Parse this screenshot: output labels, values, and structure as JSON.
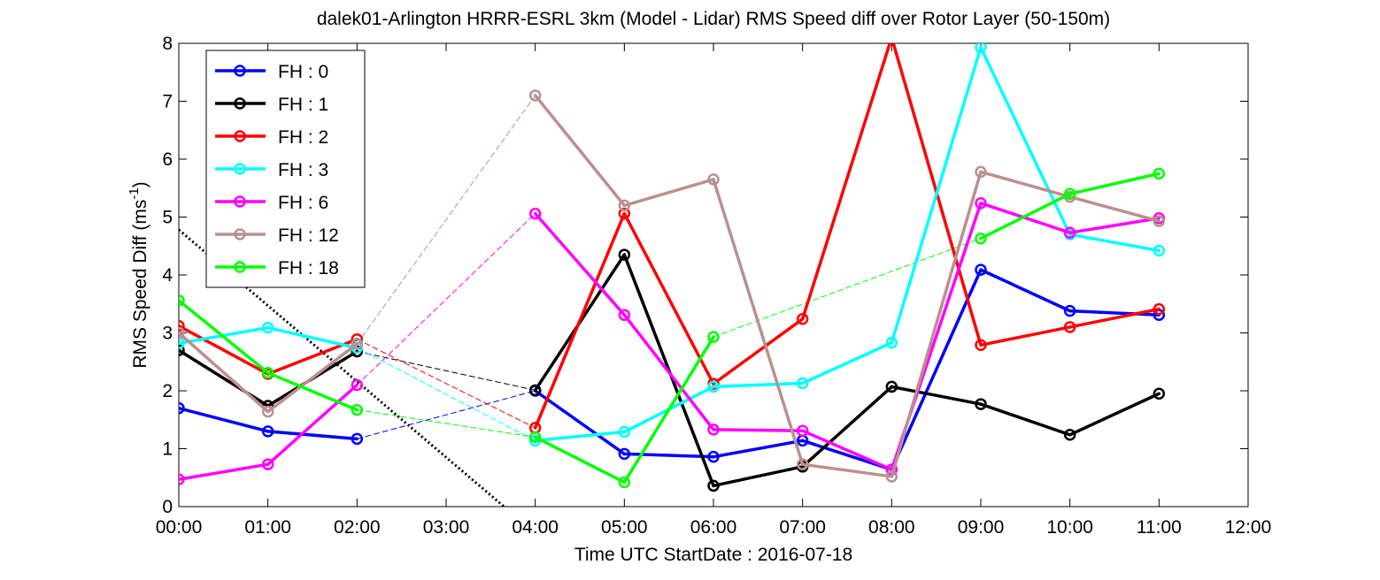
{
  "chart_data": {
    "type": "line",
    "title": "dalek01-Arlington HRRR-ESRL 3km (Model - Lidar) RMS Speed diff over Rotor Layer (50-150m)",
    "xlabel": "Time UTC    StartDate : 2016-07-18",
    "ylabel_main": "RMS Speed Diff (ms",
    "ylabel_sup": "-1",
    "ylabel_close": ")",
    "xlim": [
      0,
      12
    ],
    "ylim": [
      0,
      8
    ],
    "x_ticks": [
      0,
      1,
      2,
      3,
      4,
      5,
      6,
      7,
      8,
      9,
      10,
      11,
      12
    ],
    "x_tick_labels": [
      "00:00",
      "01:00",
      "02:00",
      "03:00",
      "04:00",
      "05:00",
      "06:00",
      "07:00",
      "08:00",
      "09:00",
      "10:00",
      "11:00",
      "12:00"
    ],
    "y_ticks": [
      0,
      1,
      2,
      3,
      4,
      5,
      6,
      7,
      8
    ],
    "y_tick_labels": [
      "0",
      "1",
      "2",
      "3",
      "4",
      "5",
      "6",
      "7",
      "8"
    ],
    "grid": false,
    "legend_position": "top-left",
    "series": [
      {
        "name": "FH : 0",
        "color": "#0000ff",
        "x": [
          0,
          1,
          2,
          4,
          5,
          6,
          7,
          8,
          9,
          10,
          11
        ],
        "y": [
          1.7,
          1.3,
          1.17,
          2.0,
          0.91,
          0.86,
          1.14,
          0.64,
          4.09,
          3.38,
          3.31
        ]
      },
      {
        "name": "FH : 1",
        "color": "#000000",
        "x": [
          0,
          1,
          2,
          4,
          5,
          6,
          7,
          8,
          9,
          10,
          11
        ],
        "y": [
          2.7,
          1.74,
          2.68,
          2.01,
          4.35,
          0.36,
          0.69,
          2.07,
          1.77,
          1.24,
          1.95
        ]
      },
      {
        "name": "FH : 2",
        "color": "#ff0000",
        "x": [
          0,
          1,
          2,
          4,
          5,
          6,
          7,
          8,
          9,
          10,
          11
        ],
        "y": [
          3.12,
          2.29,
          2.89,
          1.36,
          5.06,
          2.12,
          3.24,
          8.1,
          2.79,
          3.1,
          3.41
        ]
      },
      {
        "name": "FH : 3",
        "color": "#00ffff",
        "x": [
          0,
          1,
          2,
          4,
          5,
          6,
          7,
          8,
          9,
          10,
          11
        ],
        "y": [
          2.82,
          3.09,
          2.74,
          1.14,
          1.29,
          2.07,
          2.13,
          2.83,
          7.93,
          4.7,
          4.42
        ]
      },
      {
        "name": "FH : 6",
        "color": "#ff00ff",
        "x": [
          0,
          1,
          2,
          4,
          5,
          6,
          7,
          8,
          9,
          10,
          11
        ],
        "y": [
          0.47,
          0.73,
          2.1,
          5.06,
          3.31,
          1.33,
          1.31,
          0.64,
          5.24,
          4.73,
          4.98
        ]
      },
      {
        "name": "FH : 12",
        "color": "#bc8f8f",
        "x": [
          0,
          1,
          2,
          4,
          5,
          6,
          7,
          8,
          9,
          10,
          11
        ],
        "y": [
          3.0,
          1.64,
          2.81,
          7.1,
          5.2,
          5.65,
          0.73,
          0.52,
          5.78,
          5.35,
          4.93
        ]
      },
      {
        "name": "FH : 18",
        "color": "#00ff00",
        "x": [
          0,
          1,
          2,
          4,
          5,
          6,
          9,
          10,
          11
        ],
        "y": [
          3.56,
          2.31,
          1.67,
          1.2,
          0.42,
          2.93,
          4.63,
          5.4,
          5.75
        ]
      }
    ],
    "trend_line": {
      "color": "#000000",
      "x": [
        0,
        3.65
      ],
      "y": [
        4.78,
        0
      ]
    }
  }
}
